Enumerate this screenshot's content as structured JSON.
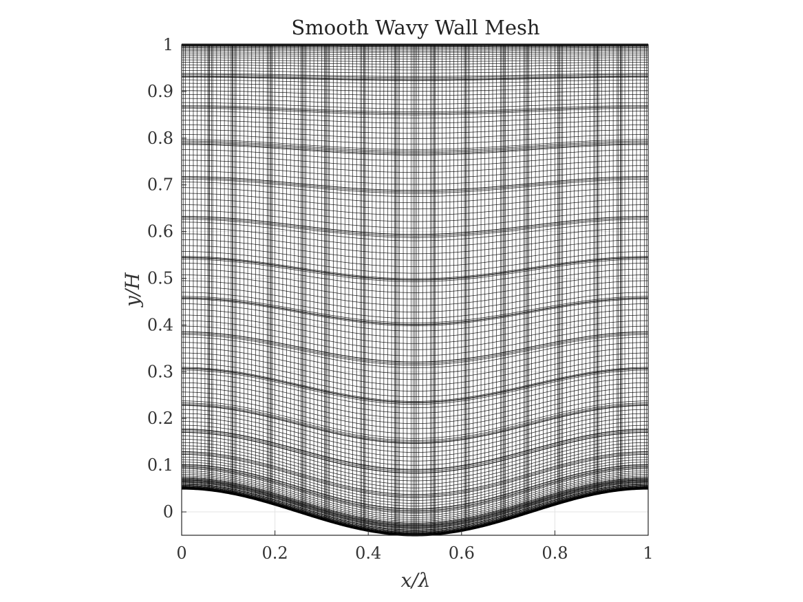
{
  "chart_data": {
    "type": "line",
    "title": "Smooth Wavy Wall Mesh",
    "xlabel": "x/λ",
    "ylabel": "y/H",
    "xlim": [
      0,
      1
    ],
    "ylim": [
      -0.05,
      1
    ],
    "xticks": [
      0,
      0.2,
      0.4,
      0.6,
      0.8,
      1
    ],
    "xtick_labels": [
      "0",
      "0.2",
      "0.4",
      "0.6",
      "0.8",
      "1"
    ],
    "yticks": [
      0,
      0.1,
      0.2,
      0.3,
      0.4,
      0.5,
      0.6,
      0.7,
      0.8,
      0.9,
      1
    ],
    "ytick_labels": [
      "0",
      "0.1",
      "0.2",
      "0.3",
      "0.4",
      "0.5",
      "0.6",
      "0.7",
      "0.8",
      "0.9",
      "1"
    ],
    "grid": true,
    "wall": {
      "function": "y = A cos(2π x/λ)",
      "amplitude": 0.05,
      "wavelength": 1,
      "top": 1
    },
    "mesh": {
      "streamwise_lines": 120,
      "wall_normal_lines": 125,
      "x_clusters": [
        0,
        0.06,
        0.11,
        0.19,
        0.26,
        0.31,
        0.39,
        0.46,
        0.5,
        0.54,
        0.61,
        0.69,
        0.74,
        0.81,
        0.89,
        0.94,
        1
      ],
      "eta_clusters": [
        0,
        0.02,
        0.05,
        0.08,
        0.13,
        0.19,
        0.27,
        0.35,
        0.43,
        0.52,
        0.61,
        0.7,
        0.78,
        0.86,
        0.93,
        1
      ]
    },
    "line_color": "#000000"
  }
}
